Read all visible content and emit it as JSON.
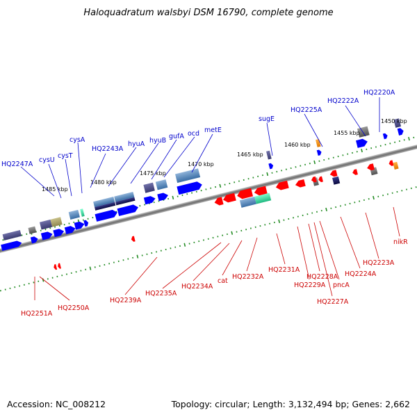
{
  "title": "Haloquadratum walsbyi DSM 16790, complete genome",
  "accession": "Accession: NC_008212",
  "topology": "Topology: circular; Length: 3,132,494 bp; Genes: 2,662",
  "colors": {
    "forward_label": "#0000cc",
    "reverse_label": "#cc0000",
    "forward_arrow": "#0000ff",
    "reverse_arrow": "#ff0000",
    "tick": "#228b22",
    "backbone": "#888888"
  },
  "kbp_labels": [
    "1485 kbp",
    "1480 kbp",
    "1475 kbp",
    "1470 kbp",
    "1465 kbp",
    "1460 kbp",
    "1455 kbp",
    "1450 kbp"
  ],
  "forward_genes": [
    "HQ2247A",
    "cysU",
    "cysT",
    "cysA",
    "HQ2243A",
    "hyuA",
    "hyuB",
    "gufA",
    "ocd",
    "metE",
    "sugE",
    "HQ2225A",
    "HQ2222A",
    "HQ2220A"
  ],
  "reverse_genes": [
    "HQ2251A",
    "HQ2250A",
    "HQ2239A",
    "HQ2235A",
    "HQ2234A",
    "cat",
    "HQ2232A",
    "HQ2231A",
    "HQ2229A",
    "HQ2228A",
    "pncA",
    "HQ2227A",
    "HQ2224A",
    "HQ2223A",
    "nikR"
  ]
}
